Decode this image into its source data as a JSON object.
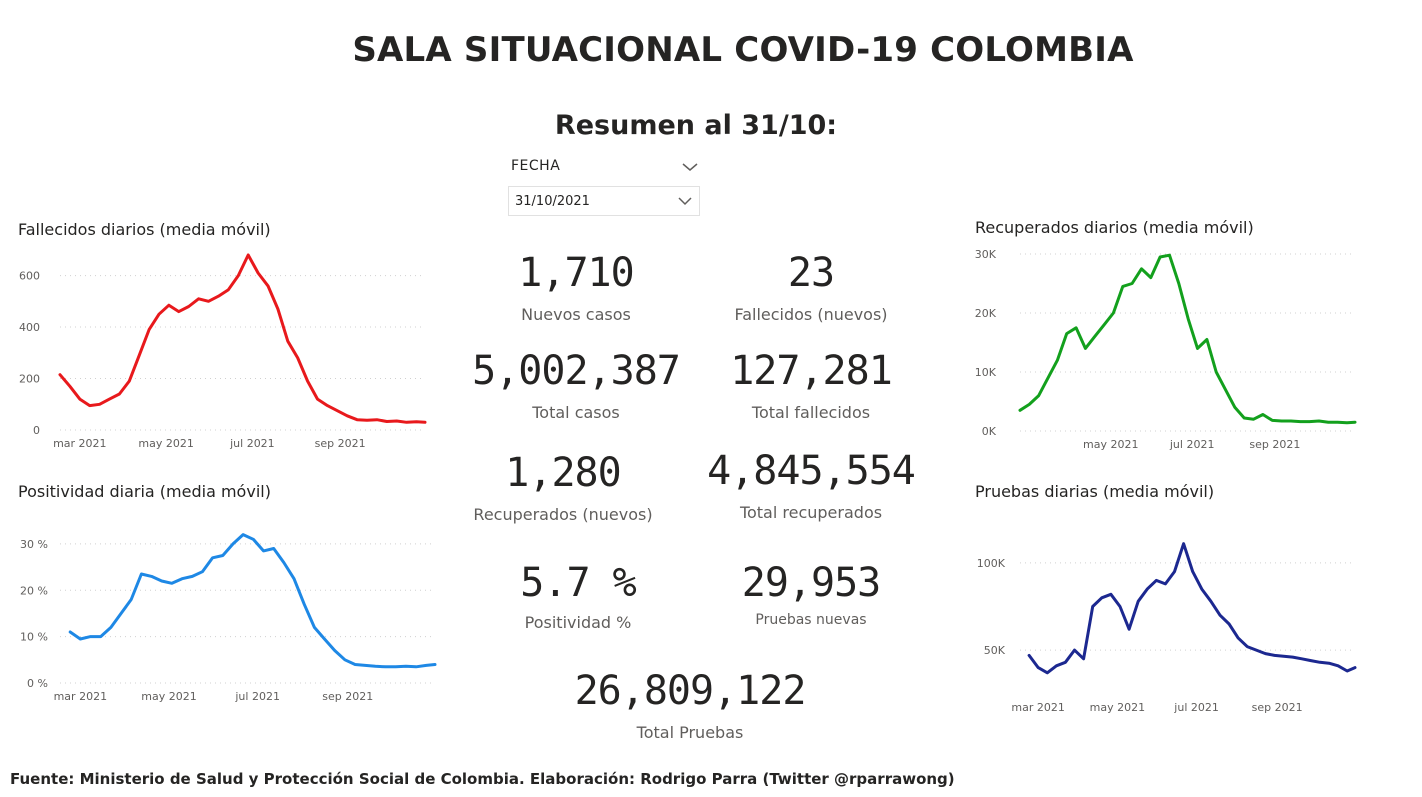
{
  "header": {
    "title": "SALA SITUACIONAL COVID-19 COLOMBIA",
    "subtitle": "Resumen al 31/10:"
  },
  "slicer": {
    "label": "FECHA",
    "value": "31/10/2021"
  },
  "kpis": [
    {
      "value": "1,710",
      "label": "Nuevos casos"
    },
    {
      "value": "23",
      "label": "Fallecidos (nuevos)"
    },
    {
      "value": "5,002,387",
      "label": "Total casos"
    },
    {
      "value": "127,281",
      "label": "Total fallecidos"
    },
    {
      "value": "1,280",
      "label": "Recuperados (nuevos)"
    },
    {
      "value": "4,845,554",
      "label": "Total recuperados"
    },
    {
      "value": "5.7 %",
      "label": "Positividad %"
    },
    {
      "value": "29,953",
      "label": "Pruebas nuevas"
    },
    {
      "value": "26,809,122",
      "label": "Total Pruebas"
    }
  ],
  "footer": "Fuente: Ministerio de Salud y Protección Social de Colombia. Elaboración: Rodrigo Parra (Twitter @rparrawong)",
  "chart_data": [
    {
      "type": "line",
      "title": "Fallecidos diarios (media móvil)",
      "color": "#e8191c",
      "x_start": "2021-02-15",
      "x_end": "2021-10-31",
      "x_ticks": [
        {
          "date": "2021-03-01",
          "label": "mar 2021"
        },
        {
          "date": "2021-05-01",
          "label": "may 2021"
        },
        {
          "date": "2021-07-01",
          "label": "jul 2021"
        },
        {
          "date": "2021-09-01",
          "label": "sep 2021"
        }
      ],
      "y_ticks": [
        {
          "value": 0,
          "label": "0"
        },
        {
          "value": 200,
          "label": "200"
        },
        {
          "value": 400,
          "label": "400"
        },
        {
          "value": 600,
          "label": "600"
        }
      ],
      "ylim": [
        0,
        680
      ],
      "grid": true,
      "x": [
        "2021-02-15",
        "2021-02-22",
        "2021-03-01",
        "2021-03-08",
        "2021-03-15",
        "2021-03-22",
        "2021-03-29",
        "2021-04-05",
        "2021-04-12",
        "2021-04-19",
        "2021-04-26",
        "2021-05-03",
        "2021-05-10",
        "2021-05-17",
        "2021-05-24",
        "2021-05-31",
        "2021-06-07",
        "2021-06-14",
        "2021-06-21",
        "2021-06-28",
        "2021-07-05",
        "2021-07-12",
        "2021-07-19",
        "2021-07-26",
        "2021-08-02",
        "2021-08-09",
        "2021-08-16",
        "2021-08-23",
        "2021-08-30",
        "2021-09-06",
        "2021-09-13",
        "2021-09-20",
        "2021-09-27",
        "2021-10-04",
        "2021-10-11",
        "2021-10-18",
        "2021-10-25",
        "2021-10-31"
      ],
      "y": [
        215,
        170,
        120,
        95,
        100,
        120,
        140,
        190,
        290,
        390,
        450,
        485,
        460,
        480,
        510,
        500,
        520,
        545,
        600,
        680,
        610,
        560,
        470,
        345,
        280,
        190,
        120,
        95,
        75,
        55,
        40,
        38,
        40,
        33,
        35,
        30,
        32,
        30
      ]
    },
    {
      "type": "line",
      "title": "Positividad diaria (media móvil)",
      "color": "#1e88e5",
      "x_start": "2021-02-15",
      "x_end": "2021-10-31",
      "x_ticks": [
        {
          "date": "2021-03-01",
          "label": "mar 2021"
        },
        {
          "date": "2021-05-01",
          "label": "may 2021"
        },
        {
          "date": "2021-07-01",
          "label": "jul 2021"
        },
        {
          "date": "2021-09-01",
          "label": "sep 2021"
        }
      ],
      "y_ticks": [
        {
          "value": 0,
          "label": "0 %"
        },
        {
          "value": 10,
          "label": "10 %"
        },
        {
          "value": 20,
          "label": "20 %"
        },
        {
          "value": 30,
          "label": "30 %"
        }
      ],
      "ylim": [
        0,
        33
      ],
      "grid": true,
      "x": [
        "2021-02-22",
        "2021-03-01",
        "2021-03-08",
        "2021-03-15",
        "2021-03-22",
        "2021-03-29",
        "2021-04-05",
        "2021-04-12",
        "2021-04-19",
        "2021-04-26",
        "2021-05-03",
        "2021-05-10",
        "2021-05-17",
        "2021-05-24",
        "2021-05-31",
        "2021-06-07",
        "2021-06-14",
        "2021-06-21",
        "2021-06-28",
        "2021-07-05",
        "2021-07-12",
        "2021-07-19",
        "2021-07-26",
        "2021-08-02",
        "2021-08-09",
        "2021-08-16",
        "2021-08-23",
        "2021-08-30",
        "2021-09-06",
        "2021-09-13",
        "2021-09-20",
        "2021-09-27",
        "2021-10-04",
        "2021-10-11",
        "2021-10-18",
        "2021-10-25",
        "2021-10-31"
      ],
      "y": [
        11,
        9.5,
        10,
        10,
        12,
        15,
        18,
        23.5,
        23,
        22,
        21.5,
        22.5,
        23,
        24,
        27,
        27.5,
        30,
        32,
        31,
        28.5,
        29,
        26,
        22.5,
        17,
        12,
        9.5,
        7,
        5,
        4,
        3.8,
        3.6,
        3.5,
        3.5,
        3.6,
        3.5,
        3.8,
        4
      ]
    },
    {
      "type": "line",
      "title": "Recuperados diarios (media móvil)",
      "color": "#13a01d",
      "x_start": "2021-02-22",
      "x_end": "2021-10-31",
      "x_ticks": [
        {
          "date": "2021-05-01",
          "label": "may 2021"
        },
        {
          "date": "2021-07-01",
          "label": "jul 2021"
        },
        {
          "date": "2021-09-01",
          "label": "sep 2021"
        }
      ],
      "y_ticks": [
        {
          "value": 0,
          "label": "0K"
        },
        {
          "value": 10000,
          "label": "10K"
        },
        {
          "value": 20000,
          "label": "20K"
        },
        {
          "value": 30000,
          "label": "30K"
        }
      ],
      "ylim": [
        0,
        30000
      ],
      "grid": true,
      "x": [
        "2021-02-22",
        "2021-03-01",
        "2021-03-08",
        "2021-03-15",
        "2021-03-22",
        "2021-03-29",
        "2021-04-05",
        "2021-04-12",
        "2021-04-19",
        "2021-04-26",
        "2021-05-03",
        "2021-05-10",
        "2021-05-17",
        "2021-05-24",
        "2021-05-31",
        "2021-06-07",
        "2021-06-14",
        "2021-06-21",
        "2021-06-28",
        "2021-07-05",
        "2021-07-12",
        "2021-07-19",
        "2021-07-26",
        "2021-08-02",
        "2021-08-09",
        "2021-08-16",
        "2021-08-23",
        "2021-08-30",
        "2021-09-06",
        "2021-09-13",
        "2021-09-20",
        "2021-09-27",
        "2021-10-04",
        "2021-10-11",
        "2021-10-18",
        "2021-10-25",
        "2021-10-31"
      ],
      "y": [
        3500,
        4500,
        6000,
        9000,
        12000,
        16500,
        17500,
        14000,
        16000,
        18000,
        20000,
        24500,
        25000,
        27500,
        26000,
        29500,
        29800,
        25000,
        19000,
        14000,
        15500,
        10000,
        7000,
        4000,
        2200,
        2000,
        2800,
        1800,
        1700,
        1700,
        1600,
        1600,
        1700,
        1500,
        1500,
        1400,
        1500
      ]
    },
    {
      "type": "line",
      "title": "Pruebas diarias (media móvil)",
      "color": "#1c2890",
      "x_start": "2021-02-15",
      "x_end": "2021-10-31",
      "x_ticks": [
        {
          "date": "2021-03-01",
          "label": "mar 2021"
        },
        {
          "date": "2021-05-01",
          "label": "may 2021"
        },
        {
          "date": "2021-07-01",
          "label": "jul 2021"
        },
        {
          "date": "2021-09-01",
          "label": "sep 2021"
        }
      ],
      "y_ticks": [
        {
          "value": 50000,
          "label": "50K"
        },
        {
          "value": 100000,
          "label": "100K"
        }
      ],
      "ylim": [
        30000,
        112000
      ],
      "grid": true,
      "x": [
        "2021-02-22",
        "2021-03-01",
        "2021-03-08",
        "2021-03-15",
        "2021-03-22",
        "2021-03-29",
        "2021-04-05",
        "2021-04-12",
        "2021-04-19",
        "2021-04-26",
        "2021-05-03",
        "2021-05-10",
        "2021-05-17",
        "2021-05-24",
        "2021-05-31",
        "2021-06-07",
        "2021-06-14",
        "2021-06-21",
        "2021-06-28",
        "2021-07-05",
        "2021-07-12",
        "2021-07-19",
        "2021-07-26",
        "2021-08-02",
        "2021-08-09",
        "2021-08-16",
        "2021-08-23",
        "2021-08-30",
        "2021-09-06",
        "2021-09-13",
        "2021-09-20",
        "2021-09-27",
        "2021-10-04",
        "2021-10-11",
        "2021-10-18",
        "2021-10-25",
        "2021-10-31"
      ],
      "y": [
        47000,
        40000,
        37000,
        41000,
        43000,
        50000,
        45000,
        75000,
        80000,
        82000,
        75000,
        62000,
        78000,
        85000,
        90000,
        88000,
        95000,
        111000,
        95000,
        85000,
        78000,
        70000,
        65000,
        57000,
        52000,
        50000,
        48000,
        47000,
        46500,
        46000,
        45000,
        44000,
        43000,
        42500,
        41000,
        38000,
        40000
      ]
    }
  ]
}
